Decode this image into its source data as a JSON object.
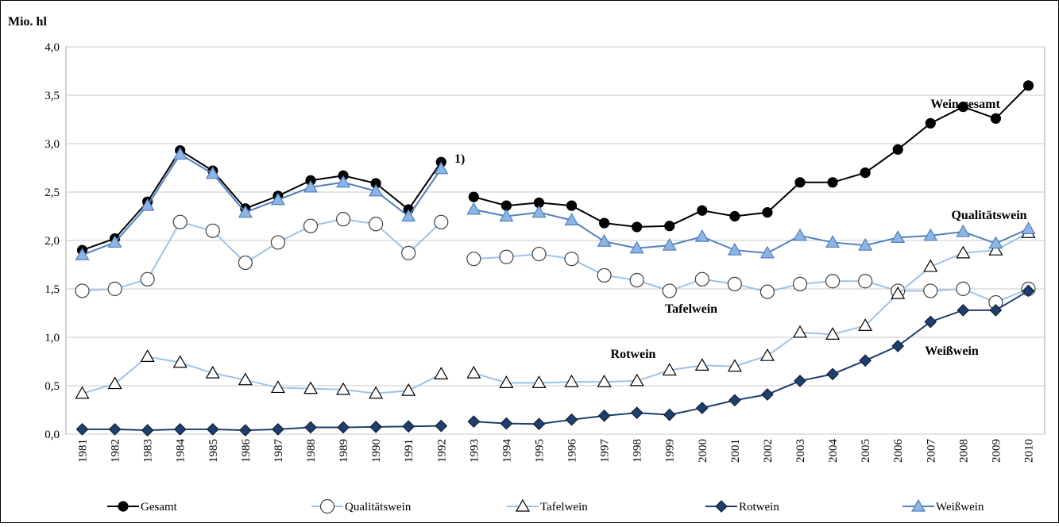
{
  "chart_data": {
    "type": "line",
    "y_unit": "Mio. hl",
    "note": "1)",
    "break_after": "1992",
    "categories": [
      "1981",
      "1982",
      "1983",
      "1984",
      "1985",
      "1986",
      "1987",
      "1988",
      "1989",
      "1990",
      "1991",
      "1992",
      "1993",
      "1994",
      "1995",
      "1996",
      "1997",
      "1998",
      "1999",
      "2000",
      "2001",
      "2002",
      "2003",
      "2004",
      "2005",
      "2006",
      "2007",
      "2008",
      "2009",
      "2010"
    ],
    "series": [
      {
        "name": "Gesamt",
        "label": "Wein gesamt",
        "color": "#000000",
        "marker": "circle",
        "marker_fill": "#000000",
        "marker_stroke": "#000000",
        "values": [
          1.9,
          2.02,
          2.4,
          2.93,
          2.72,
          2.33,
          2.46,
          2.62,
          2.67,
          2.59,
          2.32,
          2.81,
          2.45,
          2.36,
          2.39,
          2.36,
          2.18,
          2.14,
          2.15,
          2.31,
          2.25,
          2.29,
          2.6,
          2.6,
          2.7,
          2.94,
          3.21,
          3.38,
          3.26,
          3.6
        ]
      },
      {
        "name": "Qualitätswein",
        "label": "Qualitätswein",
        "color": "#9dc3e6",
        "marker": "circle-large",
        "marker_fill": "#ffffff",
        "marker_stroke": "#404040",
        "values": [
          1.48,
          1.5,
          1.6,
          2.19,
          2.1,
          1.77,
          1.98,
          2.15,
          2.22,
          2.17,
          1.87,
          2.19,
          1.81,
          1.83,
          1.86,
          1.81,
          1.64,
          1.59,
          1.48,
          1.6,
          1.55,
          1.47,
          1.55,
          1.58,
          1.58,
          1.48,
          1.48,
          1.5,
          1.36,
          1.5
        ]
      },
      {
        "name": "Tafelwein",
        "label": "Tafelwein",
        "color": "#9dc3e6",
        "marker": "triangle",
        "marker_fill": "#ffffff",
        "marker_stroke": "#000000",
        "values": [
          0.42,
          0.52,
          0.8,
          0.74,
          0.63,
          0.56,
          0.48,
          0.47,
          0.46,
          0.42,
          0.45,
          0.62,
          0.63,
          0.53,
          0.53,
          0.54,
          0.54,
          0.55,
          0.66,
          0.71,
          0.7,
          0.81,
          1.05,
          1.03,
          1.12,
          1.45,
          1.73,
          1.87,
          1.9,
          2.08
        ]
      },
      {
        "name": "Rotwein",
        "label": "Rotwein",
        "color": "#1f3f6e",
        "marker": "diamond",
        "marker_fill": "#1f3f6e",
        "marker_stroke": "#0d1f3a",
        "values": [
          0.05,
          0.05,
          0.04,
          0.05,
          0.05,
          0.04,
          0.05,
          0.07,
          0.07,
          0.075,
          0.08,
          0.085,
          0.13,
          0.11,
          0.105,
          0.15,
          0.19,
          0.22,
          0.2,
          0.27,
          0.35,
          0.41,
          0.55,
          0.62,
          0.76,
          0.91,
          1.16,
          1.28,
          1.28,
          1.48
        ]
      },
      {
        "name": "Weißwein",
        "label": "Weißwein",
        "color": "#4f81bd",
        "marker": "triangle",
        "marker_fill": "#8eb4e3",
        "marker_stroke": "#4f81bd",
        "values": [
          1.85,
          1.98,
          2.36,
          2.89,
          2.69,
          2.29,
          2.42,
          2.55,
          2.6,
          2.51,
          2.25,
          2.74,
          2.32,
          2.25,
          2.29,
          2.21,
          1.99,
          1.92,
          1.95,
          2.04,
          1.9,
          1.87,
          2.05,
          1.98,
          1.95,
          2.03,
          2.05,
          2.09,
          1.97,
          2.12
        ]
      }
    ],
    "ylim": [
      0,
      4
    ],
    "yticks": [
      {
        "value": 0,
        "label": "0,0"
      },
      {
        "value": 0.5,
        "label": "0,5"
      },
      {
        "value": 1,
        "label": "1,0"
      },
      {
        "value": 1.5,
        "label": "1,5"
      },
      {
        "value": 2,
        "label": "2,0"
      },
      {
        "value": 2.5,
        "label": "2,5"
      },
      {
        "value": 3,
        "label": "3,0"
      },
      {
        "value": 3.5,
        "label": "3,5"
      },
      {
        "value": 4,
        "label": "4,0"
      }
    ],
    "grid": true,
    "legend": "bottom"
  }
}
